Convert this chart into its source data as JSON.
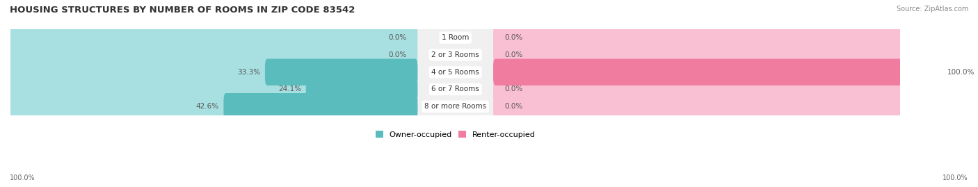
{
  "title": "HOUSING STRUCTURES BY NUMBER OF ROOMS IN ZIP CODE 83542",
  "source": "Source: ZipAtlas.com",
  "categories": [
    "1 Room",
    "2 or 3 Rooms",
    "4 or 5 Rooms",
    "6 or 7 Rooms",
    "8 or more Rooms"
  ],
  "owner_values": [
    0.0,
    0.0,
    33.3,
    24.1,
    42.6
  ],
  "renter_values": [
    0.0,
    0.0,
    100.0,
    0.0,
    0.0
  ],
  "owner_color": "#5bbcbe",
  "renter_color": "#f07ca0",
  "owner_color_light": "#a8dfe0",
  "renter_color_light": "#f9c0d3",
  "row_bg_color": "#f0f0f0",
  "max_value": 100.0,
  "x_left_label": "100.0%",
  "x_right_label": "100.0%",
  "legend_owner": "Owner-occupied",
  "legend_renter": "Renter-occupied",
  "title_fontsize": 9.5,
  "source_fontsize": 7,
  "label_fontsize": 7.5,
  "category_fontsize": 7.5,
  "axis_label_fontsize": 7,
  "legend_fontsize": 8
}
